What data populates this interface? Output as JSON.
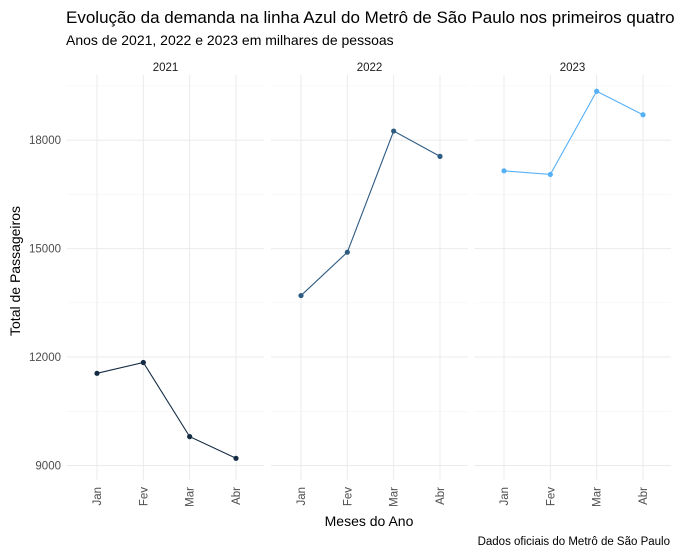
{
  "chart_data": {
    "type": "line",
    "title": "Evolução da demanda na linha Azul do Metrô de São Paulo nos primeiros quatro meses",
    "subtitle": "Anos de 2021, 2022 e 2023 em milhares de pessoas",
    "xlabel": "Meses do Ano",
    "ylabel": "Total de Passageiros",
    "caption": "Dados oficiais do Metrô de São Paulo",
    "categories": [
      "Jan",
      "Fev",
      "Mar",
      "Abr"
    ],
    "ylim": [
      8600,
      19800
    ],
    "yticks": [
      9000,
      12000,
      15000,
      18000
    ],
    "grid": true,
    "facets": [
      {
        "name": "2021",
        "color": "#132b43",
        "values": [
          11550,
          11850,
          9800,
          9200
        ]
      },
      {
        "name": "2022",
        "color": "#2e5b82",
        "values": [
          13700,
          14900,
          18250,
          17550
        ]
      },
      {
        "name": "2023",
        "color": "#56b1f7",
        "values": [
          17150,
          17050,
          19350,
          18700
        ]
      }
    ]
  }
}
